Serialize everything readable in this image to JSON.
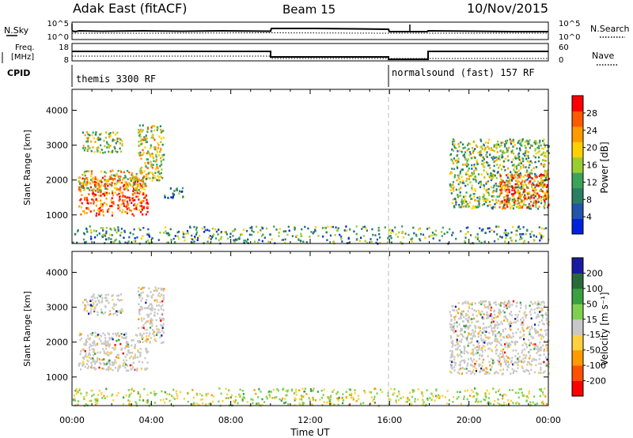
{
  "header": {
    "station": "Adak East (fitACF)",
    "beam": "Beam 15",
    "date": "10/Nov/2015"
  },
  "noise_panel": {
    "left_label": "N.Sky",
    "left_ticks": [
      "10^5",
      "10^0"
    ],
    "right_ticks": [
      "10^5",
      "10^0"
    ],
    "right_label": "N.Search"
  },
  "freq_panel": {
    "left_label_1": "Freq.",
    "left_label_2": "[MHz]",
    "left_ticks": [
      "18",
      "8"
    ],
    "right_ticks": [
      "60",
      "0"
    ],
    "right_label": "Nave"
  },
  "cpid_panel": {
    "label": "CPID",
    "modes": [
      "themis 3300 RF",
      "normalsound (fast) 157 RF"
    ]
  },
  "colors": {
    "power_scale": [
      "#0022dd",
      "#2255aa",
      "#2a7f62",
      "#3ca35a",
      "#9acd32",
      "#ffd000",
      "#ff9a00",
      "#ff5a00",
      "#ff0000"
    ],
    "velocity_scale": [
      "#1a1aa0",
      "#2a6a3a",
      "#3aa040",
      "#80d050",
      "#c8c8c8",
      "#ffd040",
      "#ff9a00",
      "#ff5000",
      "#ff0000"
    ]
  },
  "chart_data": [
    {
      "type": "heatmap",
      "panel": "power",
      "ylabel": "Slant Range [km]",
      "yticks": [
        1000,
        2000,
        3000,
        4000
      ],
      "ylim": [
        180,
        4600
      ],
      "xlim": [
        0,
        24
      ],
      "colorbar_label": "Power [dB]",
      "colorbar_ticks": [
        4,
        8,
        12,
        16,
        20,
        24,
        28
      ],
      "colorbar_range": [
        0,
        32
      ],
      "regions": [
        {
          "t0": 0.3,
          "t1": 3.8,
          "r0": 1000,
          "r1": 2100,
          "level": 0.85
        },
        {
          "t0": 0.3,
          "t1": 3.8,
          "r0": 1700,
          "r1": 2300,
          "level": 0.6
        },
        {
          "t0": 0.5,
          "t1": 2.5,
          "r0": 2800,
          "r1": 3400,
          "level": 0.5
        },
        {
          "t0": 3.3,
          "t1": 4.6,
          "r0": 2000,
          "r1": 3600,
          "level": 0.55
        },
        {
          "t0": 4.6,
          "t1": 5.6,
          "r0": 1500,
          "r1": 1800,
          "level": 0.25
        },
        {
          "t0": 19.0,
          "t1": 24.0,
          "r0": 1200,
          "r1": 3200,
          "level": 0.45
        },
        {
          "t0": 21.5,
          "t1": 24.0,
          "r0": 1200,
          "r1": 2200,
          "level": 0.8
        },
        {
          "t0": 0.0,
          "t1": 24.0,
          "r0": 200,
          "r1": 700,
          "level": 0.35
        }
      ]
    },
    {
      "type": "heatmap",
      "panel": "velocity",
      "ylabel": "Slant Range [km]",
      "yticks": [
        1000,
        2000,
        3000,
        4000
      ],
      "ylim": [
        180,
        4600
      ],
      "xlim": [
        0,
        24
      ],
      "xticks": [
        "00:00",
        "04:00",
        "08:00",
        "12:00",
        "16:00",
        "20:00",
        "00:00"
      ],
      "xlabel": "Time UT",
      "colorbar_label": "Velocity [m s⁻¹]",
      "colorbar_ticks": [
        "200",
        "100",
        "50",
        "15",
        "-15",
        "-50",
        "-100",
        "-200"
      ],
      "regions": [
        {
          "t0": 0.3,
          "t1": 3.8,
          "r0": 1200,
          "r1": 2300,
          "level": 0.5
        },
        {
          "t0": 0.5,
          "t1": 2.5,
          "r0": 2800,
          "r1": 3400,
          "level": 0.5
        },
        {
          "t0": 3.3,
          "t1": 4.6,
          "r0": 2000,
          "r1": 3600,
          "level": 0.5
        },
        {
          "t0": 19.0,
          "t1": 24.0,
          "r0": 1100,
          "r1": 3200,
          "level": 0.5
        },
        {
          "t0": 0.0,
          "t1": 24.0,
          "r0": 200,
          "r1": 700,
          "level": 0.3
        }
      ]
    }
  ]
}
